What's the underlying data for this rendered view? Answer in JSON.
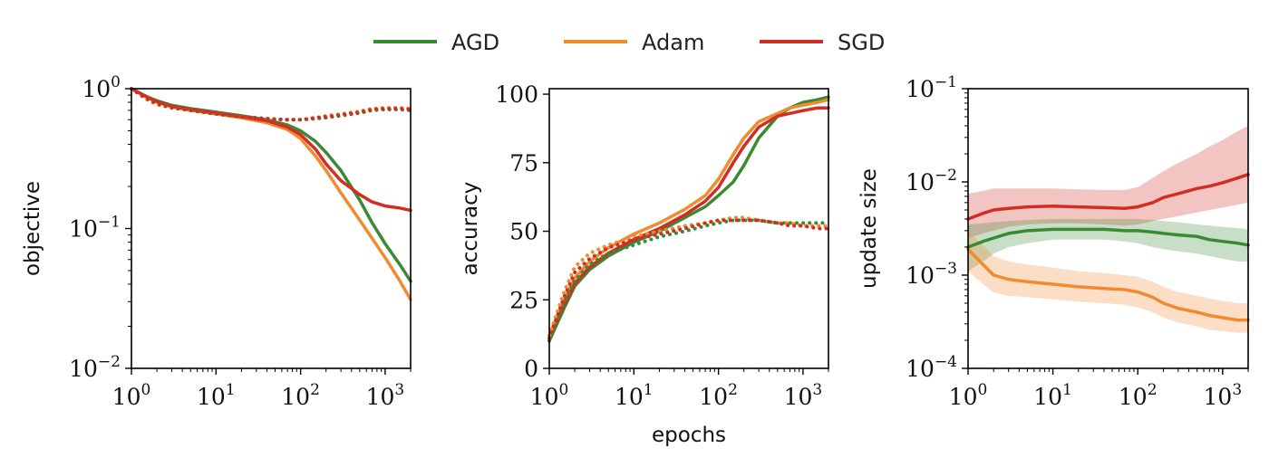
{
  "legend": {
    "placement": "top-center",
    "items": [
      {
        "label": "AGD",
        "color": "#3a8a34"
      },
      {
        "label": "Adam",
        "color": "#f28a2e"
      },
      {
        "label": "SGD",
        "color": "#d22d24"
      }
    ]
  },
  "chart_data": [
    {
      "type": "line",
      "xscale": "log",
      "yscale": "log",
      "xlim": [
        1,
        2000
      ],
      "ylim": [
        0.01,
        1
      ],
      "xlabel": "",
      "ylabel": "objective",
      "x_tick_labels": [
        {
          "base": "10",
          "exp": "0"
        },
        {
          "base": "10",
          "exp": "1"
        },
        {
          "base": "10",
          "exp": "2"
        },
        {
          "base": "10",
          "exp": "3"
        }
      ],
      "y_tick_labels": [
        {
          "base": "10",
          "exp": "0",
          "v": 1
        },
        {
          "base": "10",
          "exp": "−1",
          "v": 0.1
        },
        {
          "base": "10",
          "exp": "−2",
          "v": 0.01
        }
      ],
      "x": [
        1,
        1.5,
        2,
        3,
        5,
        10,
        20,
        40,
        70,
        100,
        150,
        200,
        300,
        500,
        700,
        1000,
        1500,
        2000
      ],
      "series": [
        {
          "color": "#3a8a34",
          "style": "solid",
          "values": [
            1.0,
            0.88,
            0.82,
            0.76,
            0.72,
            0.68,
            0.64,
            0.6,
            0.55,
            0.5,
            0.42,
            0.35,
            0.26,
            0.16,
            0.11,
            0.078,
            0.055,
            0.042
          ]
        },
        {
          "color": "#f28a2e",
          "style": "solid",
          "values": [
            1.0,
            0.87,
            0.8,
            0.74,
            0.7,
            0.66,
            0.62,
            0.57,
            0.51,
            0.44,
            0.33,
            0.26,
            0.18,
            0.115,
            0.085,
            0.062,
            0.042,
            0.031
          ]
        },
        {
          "color": "#d22d24",
          "style": "solid",
          "values": [
            1.0,
            0.88,
            0.81,
            0.75,
            0.71,
            0.67,
            0.63,
            0.59,
            0.53,
            0.47,
            0.37,
            0.29,
            0.22,
            0.175,
            0.155,
            0.145,
            0.14,
            0.135
          ]
        },
        {
          "color": "#3a8a34",
          "style": "dotted",
          "values": [
            1.0,
            0.86,
            0.79,
            0.74,
            0.7,
            0.66,
            0.63,
            0.61,
            0.6,
            0.6,
            0.61,
            0.62,
            0.64,
            0.67,
            0.7,
            0.71,
            0.71,
            0.7
          ]
        },
        {
          "color": "#f28a2e",
          "style": "dotted",
          "values": [
            1.0,
            0.84,
            0.77,
            0.73,
            0.7,
            0.66,
            0.63,
            0.61,
            0.6,
            0.6,
            0.62,
            0.64,
            0.66,
            0.69,
            0.72,
            0.73,
            0.73,
            0.72
          ]
        },
        {
          "color": "#d22d24",
          "style": "dotted",
          "values": [
            1.0,
            0.85,
            0.78,
            0.73,
            0.7,
            0.66,
            0.63,
            0.61,
            0.6,
            0.6,
            0.62,
            0.63,
            0.65,
            0.68,
            0.71,
            0.72,
            0.72,
            0.71
          ]
        }
      ]
    },
    {
      "type": "line",
      "xscale": "log",
      "yscale": "linear",
      "xlim": [
        1,
        2000
      ],
      "ylim": [
        0,
        102
      ],
      "xlabel": "epochs",
      "ylabel": "accuracy",
      "x_tick_labels": [
        {
          "base": "10",
          "exp": "0"
        },
        {
          "base": "10",
          "exp": "1"
        },
        {
          "base": "10",
          "exp": "2"
        },
        {
          "base": "10",
          "exp": "3"
        }
      ],
      "y_tick_labels": [
        {
          "base": "0",
          "exp": "",
          "v": 0
        },
        {
          "base": "25",
          "exp": "",
          "v": 25
        },
        {
          "base": "50",
          "exp": "",
          "v": 50
        },
        {
          "base": "75",
          "exp": "",
          "v": 75
        },
        {
          "base": "100",
          "exp": "",
          "v": 100
        }
      ],
      "x": [
        1,
        1.5,
        2,
        3,
        5,
        10,
        20,
        40,
        70,
        100,
        150,
        200,
        300,
        500,
        700,
        1000,
        1500,
        2000
      ],
      "series": [
        {
          "color": "#3a8a34",
          "style": "solid",
          "values": [
            10,
            22,
            30,
            36,
            41,
            46,
            50,
            55,
            59,
            63,
            68,
            74,
            84,
            92,
            95,
            97,
            98,
            99
          ]
        },
        {
          "color": "#f28a2e",
          "style": "solid",
          "values": [
            12,
            25,
            33,
            39,
            44,
            49,
            53,
            58,
            63,
            69,
            78,
            84,
            90,
            93,
            95,
            96,
            97,
            98
          ]
        },
        {
          "color": "#d22d24",
          "style": "solid",
          "values": [
            11,
            23,
            31,
            37,
            42,
            47,
            51,
            56,
            61,
            66,
            75,
            81,
            88,
            92,
            93,
            94,
            95,
            95
          ]
        },
        {
          "color": "#3a8a34",
          "style": "dotted",
          "values": [
            10,
            24,
            32,
            38,
            42,
            45,
            48,
            50,
            52,
            53,
            54,
            54,
            54,
            53,
            53,
            53,
            53,
            53
          ]
        },
        {
          "color": "#f28a2e",
          "style": "dotted",
          "values": [
            12,
            28,
            37,
            42,
            45,
            48,
            50,
            52,
            53,
            54,
            55,
            55,
            54,
            53,
            53,
            52,
            52,
            52
          ]
        },
        {
          "color": "#d22d24",
          "style": "dotted",
          "values": [
            11,
            26,
            35,
            40,
            44,
            47,
            49,
            51,
            53,
            54,
            54,
            54,
            54,
            53,
            52,
            52,
            51,
            51
          ]
        }
      ]
    },
    {
      "type": "line",
      "xscale": "log",
      "yscale": "log",
      "xlim": [
        1,
        2000
      ],
      "ylim": [
        0.0001,
        0.1
      ],
      "xlabel": "",
      "ylabel": "update size",
      "x_tick_labels": [
        {
          "base": "10",
          "exp": "0"
        },
        {
          "base": "10",
          "exp": "1"
        },
        {
          "base": "10",
          "exp": "2"
        },
        {
          "base": "10",
          "exp": "3"
        }
      ],
      "y_tick_labels": [
        {
          "base": "10",
          "exp": "−1",
          "v": 0.1
        },
        {
          "base": "10",
          "exp": "−2",
          "v": 0.01
        },
        {
          "base": "10",
          "exp": "−3",
          "v": 0.001
        },
        {
          "base": "10",
          "exp": "−4",
          "v": 0.0001
        }
      ],
      "x": [
        1,
        1.5,
        2,
        3,
        5,
        10,
        20,
        40,
        70,
        100,
        150,
        200,
        300,
        500,
        700,
        1000,
        1500,
        2000
      ],
      "series": [
        {
          "color": "#d22d24",
          "style": "solid",
          "values": [
            0.004,
            0.0046,
            0.005,
            0.0052,
            0.0054,
            0.0055,
            0.0054,
            0.0053,
            0.0052,
            0.0054,
            0.006,
            0.0068,
            0.0075,
            0.0085,
            0.009,
            0.0098,
            0.011,
            0.012
          ],
          "band_low": [
            0.0025,
            0.0028,
            0.003,
            0.0033,
            0.0035,
            0.0036,
            0.0036,
            0.0035,
            0.0034,
            0.0035,
            0.0038,
            0.004,
            0.0043,
            0.0047,
            0.005,
            0.0053,
            0.0057,
            0.006
          ],
          "band_high": [
            0.0075,
            0.008,
            0.0085,
            0.0085,
            0.0085,
            0.0085,
            0.0083,
            0.0082,
            0.0082,
            0.0088,
            0.011,
            0.013,
            0.016,
            0.02,
            0.024,
            0.028,
            0.035,
            0.04
          ]
        },
        {
          "color": "#3a8a34",
          "style": "solid",
          "values": [
            0.002,
            0.0023,
            0.0025,
            0.0028,
            0.003,
            0.0031,
            0.0031,
            0.0031,
            0.003,
            0.003,
            0.0029,
            0.0028,
            0.0027,
            0.0026,
            0.0024,
            0.0023,
            0.0022,
            0.0021
          ],
          "band_low": [
            0.0011,
            0.0014,
            0.0017,
            0.002,
            0.0022,
            0.0024,
            0.0024,
            0.0024,
            0.0023,
            0.0022,
            0.002,
            0.0019,
            0.0018,
            0.0017,
            0.0016,
            0.0015,
            0.0014,
            0.0014
          ],
          "band_high": [
            0.0035,
            0.0036,
            0.0037,
            0.0038,
            0.0039,
            0.004,
            0.004,
            0.004,
            0.004,
            0.004,
            0.0039,
            0.0038,
            0.0037,
            0.0035,
            0.0034,
            0.0033,
            0.0032,
            0.0031
          ]
        },
        {
          "color": "#f28a2e",
          "style": "solid",
          "values": [
            0.0019,
            0.0013,
            0.001,
            0.0009,
            0.00085,
            0.0008,
            0.00075,
            0.00072,
            0.0007,
            0.00066,
            0.00058,
            0.0005,
            0.00044,
            0.0004,
            0.00037,
            0.00035,
            0.00033,
            0.00033
          ],
          "band_low": [
            0.0011,
            0.0008,
            0.00065,
            0.0006,
            0.00058,
            0.00055,
            0.00052,
            0.0005,
            0.00048,
            0.00045,
            0.0004,
            0.00035,
            0.00031,
            0.00028,
            0.00026,
            0.00025,
            0.00024,
            0.00024
          ],
          "band_high": [
            0.003,
            0.0021,
            0.0016,
            0.0014,
            0.0013,
            0.0012,
            0.0011,
            0.00105,
            0.001,
            0.00096,
            0.00085,
            0.00075,
            0.00066,
            0.0006,
            0.00056,
            0.00053,
            0.0005,
            0.0005
          ]
        }
      ]
    }
  ]
}
